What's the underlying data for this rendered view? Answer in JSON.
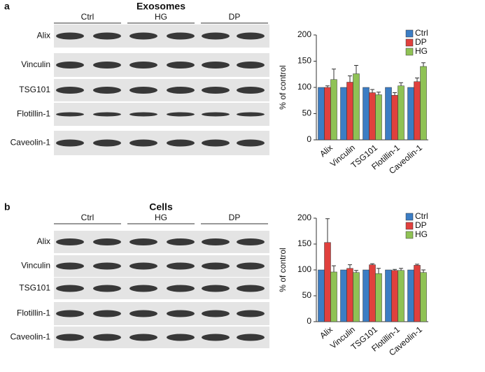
{
  "panels": [
    {
      "label": "a",
      "title": "Exosomes",
      "groups": [
        "Ctrl",
        "HG",
        "DP"
      ],
      "blots": [
        "Alix",
        "Vinculin",
        "TSG101",
        "Flotillin-1",
        "Caveolin-1"
      ]
    },
    {
      "label": "b",
      "title": "Cells",
      "groups": [
        "Ctrl",
        "HG",
        "DP"
      ],
      "blots": [
        "Alix",
        "Vinculin",
        "TSG101",
        "Flotillin-1",
        "Caveolin-1"
      ]
    }
  ],
  "chart_data": [
    {
      "type": "bar",
      "ylabel": "% of control",
      "categories": [
        "Alix",
        "Vinculin",
        "TSG101",
        "Flotillin-1",
        "Caveolin-1"
      ],
      "series": [
        {
          "name": "Ctrl",
          "color": "#3b7dc4",
          "values": [
            100,
            100,
            100,
            100,
            100
          ]
        },
        {
          "name": "DP",
          "color": "#e0403d",
          "values": [
            100,
            110,
            90,
            85,
            111
          ],
          "errors": [
            3,
            12,
            6,
            5,
            7
          ]
        },
        {
          "name": "HG",
          "color": "#8fc255",
          "values": [
            115,
            126,
            86,
            103,
            140
          ],
          "errors": [
            20,
            16,
            5,
            6,
            7
          ]
        }
      ],
      "ylim": [
        0,
        200
      ],
      "yticks": [
        0,
        50,
        100,
        150,
        200
      ],
      "legend": "upper right"
    },
    {
      "type": "bar",
      "ylabel": "% of control",
      "categories": [
        "Alix",
        "Vinculin",
        "TSG101",
        "Flotillin-1",
        "Caveolin-1"
      ],
      "series": [
        {
          "name": "Ctrl",
          "color": "#3b7dc4",
          "values": [
            100,
            100,
            100,
            100,
            100
          ]
        },
        {
          "name": "DP",
          "color": "#e0403d",
          "values": [
            153,
            103,
            110,
            99,
            109
          ],
          "errors": [
            46,
            7,
            2,
            2,
            2
          ]
        },
        {
          "name": "HG",
          "color": "#8fc255",
          "values": [
            96,
            95,
            93,
            99,
            95
          ],
          "errors": [
            12,
            4,
            10,
            4,
            5
          ]
        }
      ],
      "ylim": [
        0,
        200
      ],
      "yticks": [
        0,
        50,
        100,
        150,
        200
      ],
      "legend": "upper right"
    }
  ]
}
